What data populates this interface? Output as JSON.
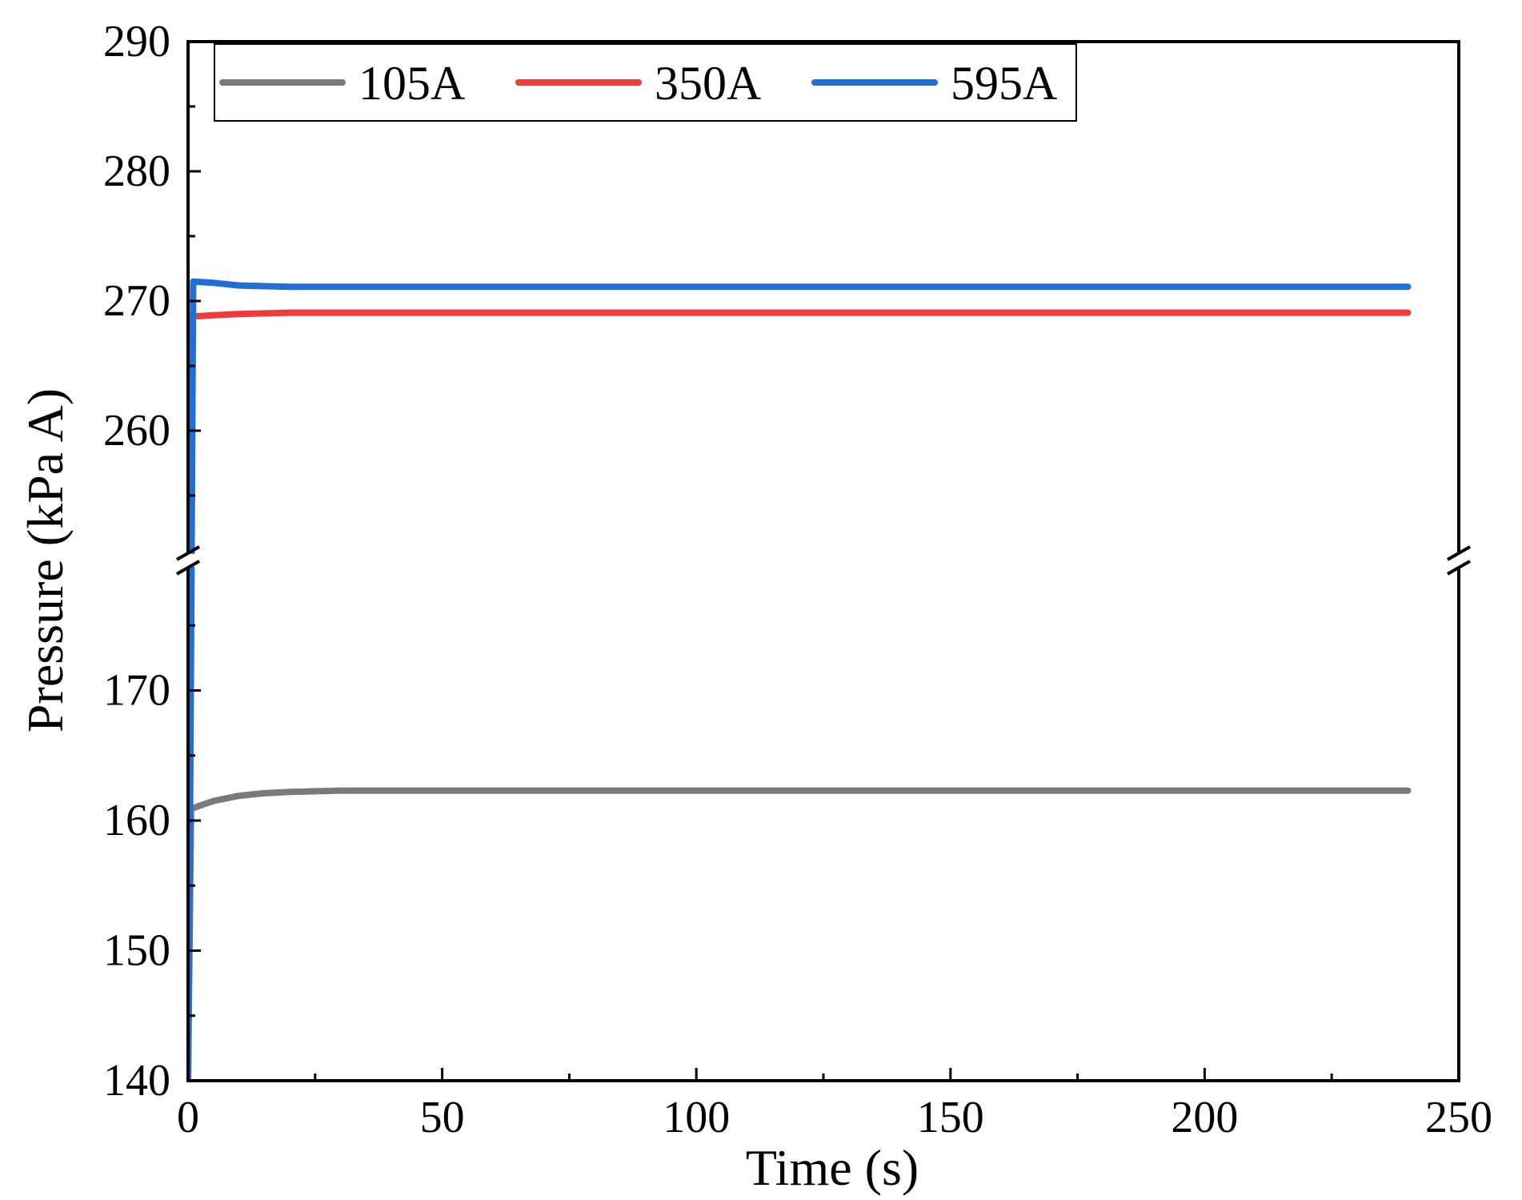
{
  "chart_data": {
    "type": "line",
    "title": "",
    "xlabel": "Time (s)",
    "ylabel": "Pressure (kPa A)",
    "xlim": [
      0,
      250
    ],
    "x_ticks": [
      0,
      50,
      100,
      150,
      200,
      250
    ],
    "y_axis_break": {
      "lower_range": [
        140,
        180
      ],
      "upper_range": [
        250,
        290
      ]
    },
    "y_ticks_lower": [
      140,
      150,
      160,
      170
    ],
    "y_ticks_upper": [
      260,
      270,
      280,
      290
    ],
    "grid": false,
    "legend_position": "top",
    "series": [
      {
        "name": "105A",
        "color": "#7a7a7a",
        "points": [
          [
            0,
            140
          ],
          [
            0.6,
            160.9
          ],
          [
            2,
            161.1
          ],
          [
            5,
            161.5
          ],
          [
            10,
            161.9
          ],
          [
            15,
            162.1
          ],
          [
            20,
            162.2
          ],
          [
            30,
            162.3
          ],
          [
            60,
            162.3
          ],
          [
            120,
            162.3
          ],
          [
            180,
            162.3
          ],
          [
            240,
            162.3
          ]
        ]
      },
      {
        "name": "350A",
        "color": "#ef3b3b",
        "points": [
          [
            0,
            140
          ],
          [
            0.4,
            250
          ],
          [
            0.8,
            268.8
          ],
          [
            5,
            268.9
          ],
          [
            10,
            269.0
          ],
          [
            20,
            269.1
          ],
          [
            40,
            269.1
          ],
          [
            120,
            269.1
          ],
          [
            240,
            269.1
          ]
        ]
      },
      {
        "name": "595A",
        "color": "#1f6fd6",
        "points": [
          [
            0,
            140
          ],
          [
            0.4,
            160
          ],
          [
            0.7,
            250
          ],
          [
            1.0,
            271.5
          ],
          [
            5,
            271.4
          ],
          [
            10,
            271.2
          ],
          [
            20,
            271.1
          ],
          [
            60,
            271.1
          ],
          [
            150,
            271.1
          ],
          [
            240,
            271.1
          ]
        ]
      }
    ]
  }
}
